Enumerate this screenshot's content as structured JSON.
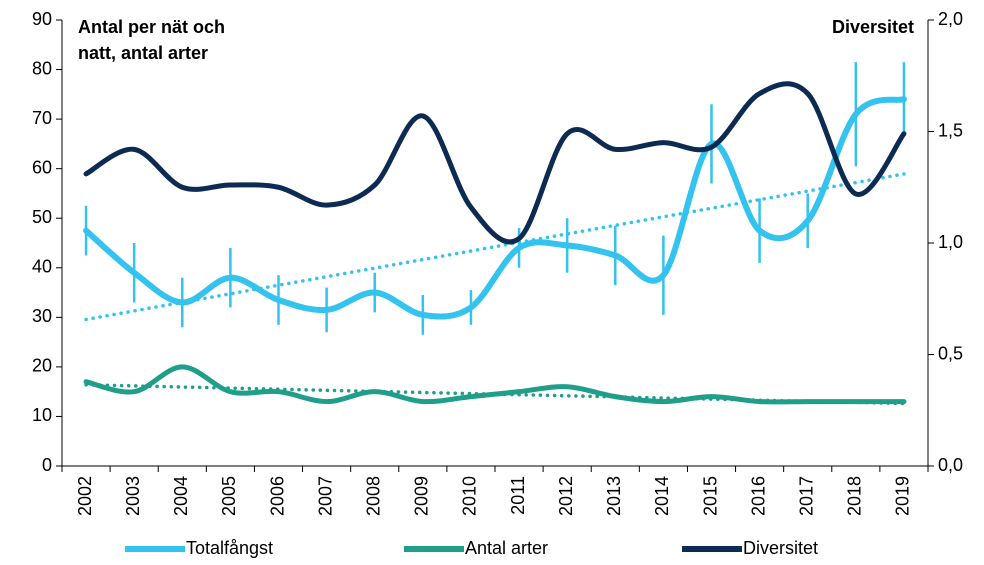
{
  "chart_data": {
    "type": "line",
    "y_label": "Antal per nät och natt, antal arter",
    "y2_label": "Diversitet",
    "categories": [
      "2002",
      "2003",
      "2004",
      "2005",
      "2006",
      "2007",
      "2008",
      "2009",
      "2010",
      "2011",
      "2012",
      "2013",
      "2014",
      "2015",
      "2016",
      "2017",
      "2018",
      "2019"
    ],
    "ylim": [
      0,
      90
    ],
    "yticks": [
      0,
      10,
      20,
      30,
      40,
      50,
      60,
      70,
      80,
      90
    ],
    "y2lim": [
      0,
      2
    ],
    "y2ticks": [
      {
        "value": 0,
        "label": "0,0"
      },
      {
        "value": 0.5,
        "label": "0,5"
      },
      {
        "value": 1,
        "label": "1,0"
      },
      {
        "value": 1.5,
        "label": "1,5"
      },
      {
        "value": 2,
        "label": "2,0"
      }
    ],
    "series": [
      {
        "name": "Totalfångst",
        "color": "#33c3ee",
        "trendline": true,
        "values": [
          47.5,
          39,
          33,
          38,
          33.5,
          31.5,
          35,
          30.5,
          32,
          44,
          44.5,
          42.5,
          38.5,
          65,
          47.5,
          49.5,
          71,
          74
        ],
        "errors": [
          5,
          6,
          5,
          6,
          5,
          4.5,
          4,
          4,
          3.5,
          4,
          5.5,
          6,
          8,
          8,
          6.5,
          5.5,
          10.5,
          7.5
        ]
      },
      {
        "name": "Antal arter",
        "color": "#1f9e89",
        "trendline": true,
        "values": [
          17,
          15,
          20,
          15,
          15,
          13,
          15,
          13,
          14,
          15,
          16,
          14,
          13,
          14,
          13,
          13,
          13,
          13
        ]
      },
      {
        "name": "Diversitet",
        "color": "#0d2a52",
        "axis": "y2",
        "trendline": false,
        "values": [
          1.31,
          1.42,
          1.25,
          1.26,
          1.25,
          1.17,
          1.26,
          1.57,
          1.16,
          1.02,
          1.49,
          1.42,
          1.45,
          1.43,
          1.67,
          1.67,
          1.22,
          1.49
        ]
      }
    ]
  }
}
